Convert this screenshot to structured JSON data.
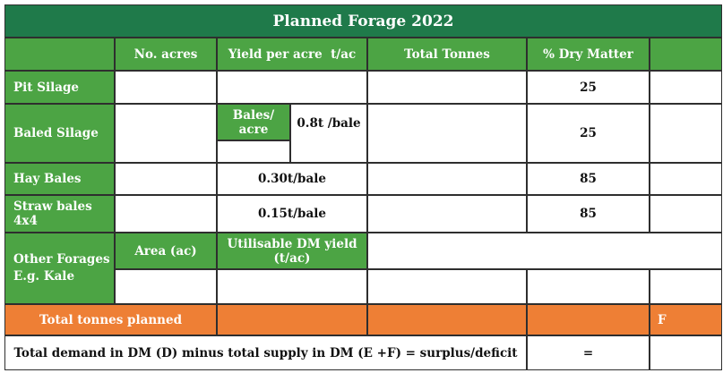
{
  "title": "Planned Forage 2022",
  "columns": {
    "acres": "No. acres",
    "yield": "Yield per acre  t/ac",
    "tonnes": "Total Tonnes",
    "dry_matter": "% Dry Matter"
  },
  "rows": {
    "pit_silage": {
      "label": "Pit Silage",
      "dm": "25"
    },
    "baled_silage": {
      "label": "Baled Silage",
      "bales_label": "Bales/\nacre",
      "yield": "0.8t /bale",
      "dm": "25"
    },
    "hay_bales": {
      "label": "Hay Bales",
      "yield": "0.30t/bale",
      "dm": "85"
    },
    "straw_bales": {
      "label": "Straw bales\n4x4",
      "yield": "0.15t/bale",
      "dm": "85"
    },
    "other_forages": {
      "label": "Other Forages\nE.g. Kale",
      "area": "Area (ac)",
      "dm_yield": "Utilisable DM yield\n(t/ac)"
    }
  },
  "total_row": {
    "label": "Total tonnes planned",
    "marker": "F"
  },
  "demand_row": {
    "label": "Total demand in DM (D) minus total supply in DM (E +F) = surplus/deficit",
    "equals": "="
  },
  "colors": {
    "green": "#4ca444",
    "dark_green": "#1f7a4a",
    "orange": "#ee7f35"
  }
}
